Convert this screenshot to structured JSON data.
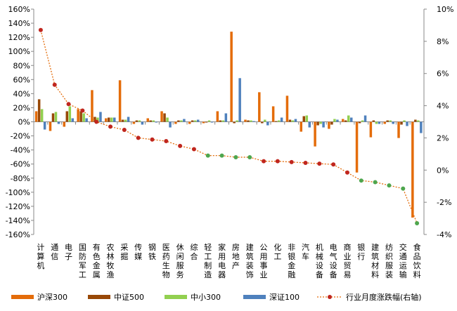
{
  "chart_data": {
    "type": "bar",
    "categories": [
      "计算机",
      "通信",
      "电子",
      "国防军工",
      "有色金属",
      "农林牧渔",
      "采掘",
      "传媒",
      "钢铁",
      "医药生物",
      "休闲服务",
      "综合",
      "轻工制造",
      "家用电器",
      "房地产",
      "建筑装饰",
      "公用事业",
      "化工",
      "非银金融",
      "汽车",
      "机械设备",
      "电气设备",
      "商业贸易",
      "银行",
      "建筑材料",
      "纺织服装",
      "交通运输",
      "食品饮料"
    ],
    "series": [
      {
        "name": "沪深300",
        "color": "#E46C0A",
        "axis": "left",
        "values": [
          15,
          13,
          7,
          18,
          45,
          5,
          59,
          3,
          5,
          15,
          3,
          3,
          2,
          15,
          128,
          3,
          42,
          22,
          37,
          14,
          35,
          10,
          4,
          72,
          22,
          3,
          23,
          136
        ]
      },
      {
        "name": "中证500",
        "color": "#984807",
        "axis": "left",
        "values": [
          32,
          12,
          15,
          15,
          7,
          6,
          3,
          2,
          2,
          12,
          2,
          2,
          1,
          2,
          2,
          2,
          2,
          1,
          3,
          8,
          5,
          4,
          2,
          2,
          2,
          2,
          4,
          3
        ]
      },
      {
        "name": "中小300",
        "color": "#92D050",
        "axis": "left",
        "values": [
          18,
          14,
          22,
          12,
          6,
          6,
          3,
          2,
          2,
          6,
          2,
          2,
          2,
          2,
          2,
          2,
          3,
          2,
          2,
          9,
          3,
          4,
          9,
          2,
          3,
          2,
          2,
          2
        ]
      },
      {
        "name": "深证100",
        "color": "#4F81BD",
        "axis": "left",
        "values": [
          11,
          3,
          5,
          5,
          14,
          6,
          7,
          4,
          1,
          8,
          4,
          3,
          1,
          12,
          62,
          1,
          5,
          6,
          4,
          8,
          8,
          3,
          6,
          9,
          3,
          3,
          6,
          16
        ]
      },
      {
        "name": "行业月度涨跌幅(右轴)",
        "color": "#E46C0A",
        "axis": "right",
        "values": [
          8.7,
          5.3,
          4.1,
          3.7,
          3.0,
          2.7,
          2.5,
          2.0,
          1.9,
          1.8,
          1.5,
          1.3,
          0.9,
          0.9,
          0.8,
          0.8,
          0.55,
          0.55,
          0.5,
          0.45,
          0.4,
          0.35,
          -0.15,
          -0.65,
          -0.75,
          -0.95,
          -1.15,
          -3.3
        ]
      }
    ],
    "series_signs": [
      [
        1,
        -1,
        -1,
        1,
        1,
        1,
        1,
        -1,
        1,
        1,
        -1,
        -1,
        -1,
        1,
        1,
        1,
        1,
        1,
        1,
        -1,
        -1,
        -1,
        1,
        -1,
        -1,
        -1,
        -1,
        -1
      ],
      [
        1,
        1,
        1,
        1,
        1,
        1,
        1,
        1,
        1,
        1,
        1,
        1,
        -1,
        1,
        -1,
        1,
        -1,
        1,
        1,
        1,
        -1,
        -1,
        1,
        -1,
        1,
        1,
        -1,
        1
      ],
      [
        1,
        1,
        1,
        1,
        1,
        1,
        1,
        1,
        1,
        1,
        1,
        1,
        1,
        1,
        1,
        1,
        1,
        1,
        1,
        1,
        -1,
        1,
        1,
        1,
        -1,
        1,
        1,
        1
      ],
      [
        -1,
        -1,
        1,
        1,
        1,
        1,
        1,
        -1,
        -1,
        -1,
        1,
        1,
        -1,
        1,
        1,
        1,
        -1,
        1,
        1,
        -1,
        -1,
        1,
        1,
        1,
        -1,
        -1,
        -1,
        -1
      ]
    ],
    "left_axis": {
      "min": -160,
      "max": 160,
      "step": 20,
      "suffix": "%"
    },
    "right_axis": {
      "min": -4,
      "max": 10,
      "step": 2,
      "suffix": "%"
    },
    "legend_position": "bottom",
    "grid": false
  }
}
